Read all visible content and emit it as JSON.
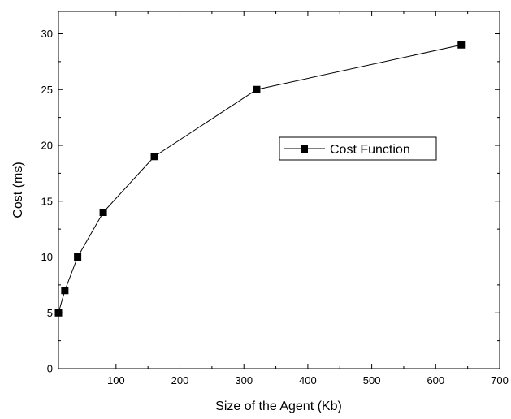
{
  "chart_data": {
    "type": "line",
    "title": "",
    "xlabel": "Size of the Agent (Kb)",
    "ylabel": "Cost (ms)",
    "xlim": [
      10,
      700
    ],
    "ylim": [
      0,
      32
    ],
    "x_ticks": [
      100,
      200,
      300,
      400,
      500,
      600,
      700
    ],
    "y_ticks": [
      0,
      5,
      10,
      15,
      20,
      25,
      30
    ],
    "grid": false,
    "legend_position": "middle-right",
    "series": [
      {
        "name": "Cost Function",
        "marker": "square",
        "color": "#000000",
        "x": [
          10,
          20,
          40,
          80,
          160,
          320,
          640
        ],
        "y": [
          5,
          7,
          10,
          14,
          19,
          25,
          29
        ]
      }
    ]
  }
}
